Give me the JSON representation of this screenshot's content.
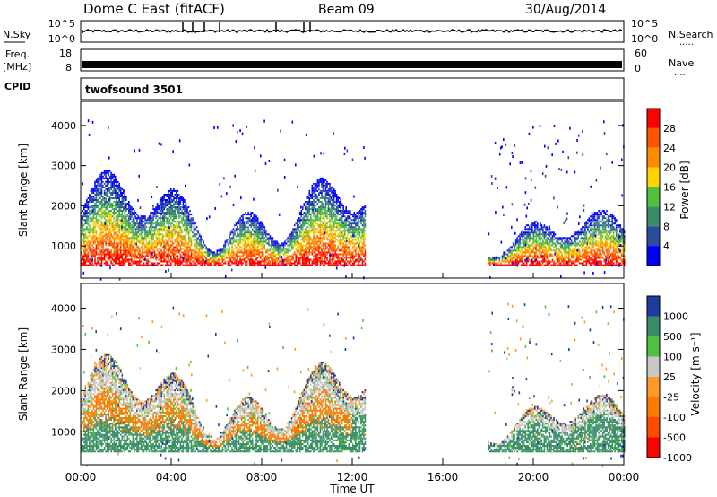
{
  "header": {
    "station": "Dome C East (fitACF)",
    "beam": "Beam 09",
    "date": "30/Aug/2014"
  },
  "side_labels": {
    "nsky": "N.Sky",
    "freq": "Freq.",
    "freq_unit": "[MHz]",
    "cpid": "CPID",
    "nsearch": "N.Search",
    "nave": "Nave",
    "nsearch_dots": "......",
    "nave_dots": "...."
  },
  "panel_ticks": {
    "noise_left": [
      "10^5",
      "10^0"
    ],
    "noise_right": [
      "10^5",
      "10^0"
    ],
    "freq_left": [
      "18",
      "8"
    ],
    "freq_right": [
      "60",
      "0"
    ]
  },
  "cpid_text": "twofsound 3501",
  "chart_data": [
    {
      "type": "heatmap",
      "panel": "power",
      "ylabel": "Slant Range [km]",
      "xlabel": "",
      "colorbar_label": "Power [dB]",
      "colorbar_ticks": [
        "28",
        "24",
        "20",
        "16",
        "12",
        "8",
        "4"
      ],
      "colorbar_colors": [
        "#ff0000",
        "#ff5500",
        "#ff8c00",
        "#ffd400",
        "#50c040",
        "#3a8c6a",
        "#2b4c9c",
        "#0000ff"
      ],
      "ylim": [
        200,
        4600
      ],
      "yticks": [
        "1000",
        "2000",
        "3000",
        "4000"
      ],
      "xlim": [
        0,
        24
      ],
      "echo_regions": [
        {
          "t0": 0.0,
          "t1": 12.6,
          "r0": 500,
          "r1": 2900
        },
        {
          "t0": 18.0,
          "t1": 24.0,
          "r0": 500,
          "r1": 1900
        }
      ]
    },
    {
      "type": "heatmap",
      "panel": "velocity",
      "ylabel": "Slant Range [km]",
      "xlabel": "Time UT",
      "colorbar_label": "Velocity [m s⁻¹]",
      "colorbar_ticks": [
        "1000",
        "500",
        "100",
        "25",
        "-25",
        "-100",
        "-500",
        "-1000"
      ],
      "colorbar_colors": [
        "#1e3c9c",
        "#3a8c6a",
        "#50c040",
        "#c8c8c8",
        "#ff9a2a",
        "#ff7a00",
        "#ff4a00",
        "#ff0000"
      ],
      "ylim": [
        200,
        4600
      ],
      "yticks": [
        "1000",
        "2000",
        "3000",
        "4000"
      ],
      "xlim": [
        0,
        24
      ],
      "xticks": [
        "00:00",
        "04:00",
        "08:00",
        "12:00",
        "16:00",
        "20:00",
        "00:00"
      ],
      "echo_regions": [
        {
          "t0": 0.0,
          "t1": 12.6,
          "r0": 500,
          "r1": 2900
        },
        {
          "t0": 18.0,
          "t1": 24.0,
          "r0": 500,
          "r1": 1900
        }
      ]
    }
  ]
}
